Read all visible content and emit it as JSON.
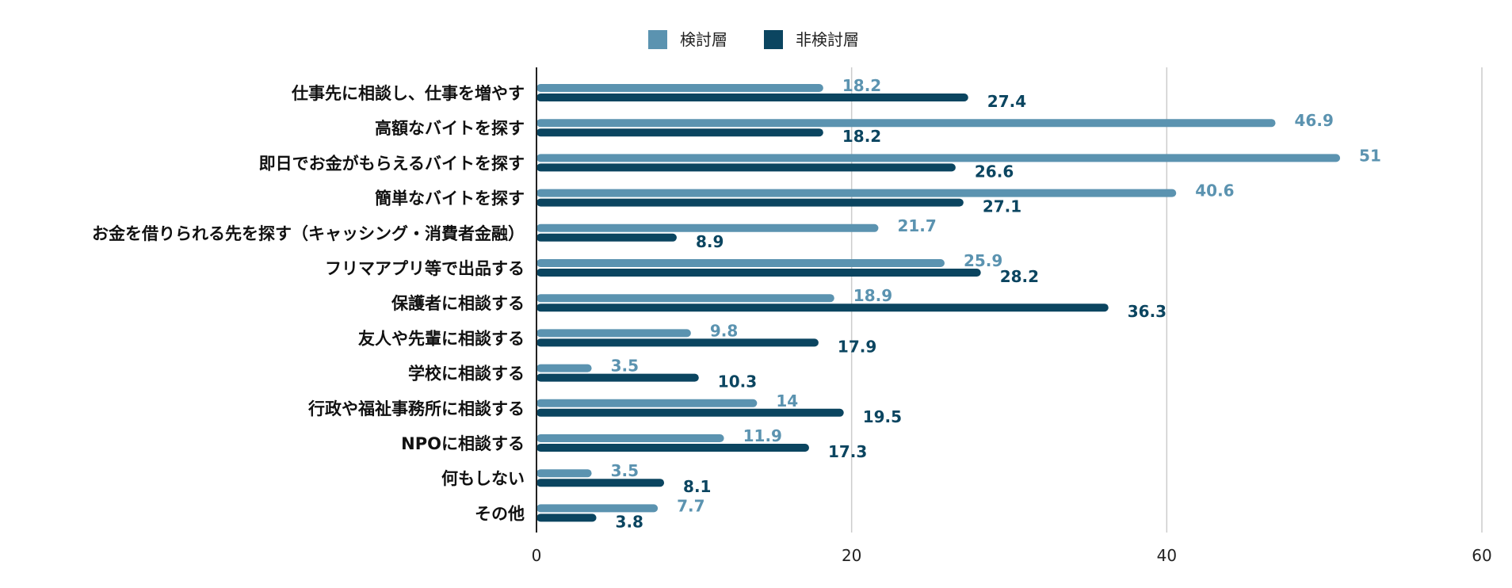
{
  "chart_data": {
    "type": "bar",
    "orientation": "horizontal",
    "categories": [
      "仕事先に相談し、仕事を増やす",
      "高額なバイトを探す",
      "即日でお金がもらえるバイトを探す",
      "簡単なバイトを探す",
      "お金を借りられる先を探す（キャッシング・消費者金融）",
      "フリマアプリ等で出品する",
      "保護者に相談する",
      "友人や先輩に相談する",
      "学校に相談する",
      "行政や福祉事務所に相談する",
      "NPOに相談する",
      "何もしない",
      "その他"
    ],
    "series": [
      {
        "name": "検討層",
        "color": "#5b93b0",
        "values": [
          18.2,
          46.9,
          51,
          40.6,
          21.7,
          25.9,
          18.9,
          9.8,
          3.5,
          14,
          11.9,
          3.5,
          7.7
        ],
        "labels": [
          "18.2",
          "46.9",
          "51",
          "40.6",
          "21.7",
          "25.9",
          "18.9",
          "9.8",
          "3.5",
          "14",
          "11.9",
          "3.5",
          "7.7"
        ]
      },
      {
        "name": "非検討層",
        "color": "#0b4560",
        "values": [
          27.4,
          18.2,
          26.6,
          27.1,
          8.9,
          28.2,
          36.3,
          17.9,
          10.3,
          19.5,
          17.3,
          8.1,
          3.8
        ],
        "labels": [
          "27.4",
          "18.2",
          "26.6",
          "27.1",
          "8.9",
          "28.2",
          "36.3",
          "17.9",
          "10.3",
          "19.5",
          "17.3",
          "8.1",
          "3.8"
        ]
      }
    ],
    "x_ticks": [
      "0",
      "20",
      "40",
      "60"
    ],
    "xlim": [
      0,
      60
    ],
    "grid": true,
    "legend_position": "top-center",
    "title": "",
    "xlabel": "",
    "ylabel": ""
  }
}
